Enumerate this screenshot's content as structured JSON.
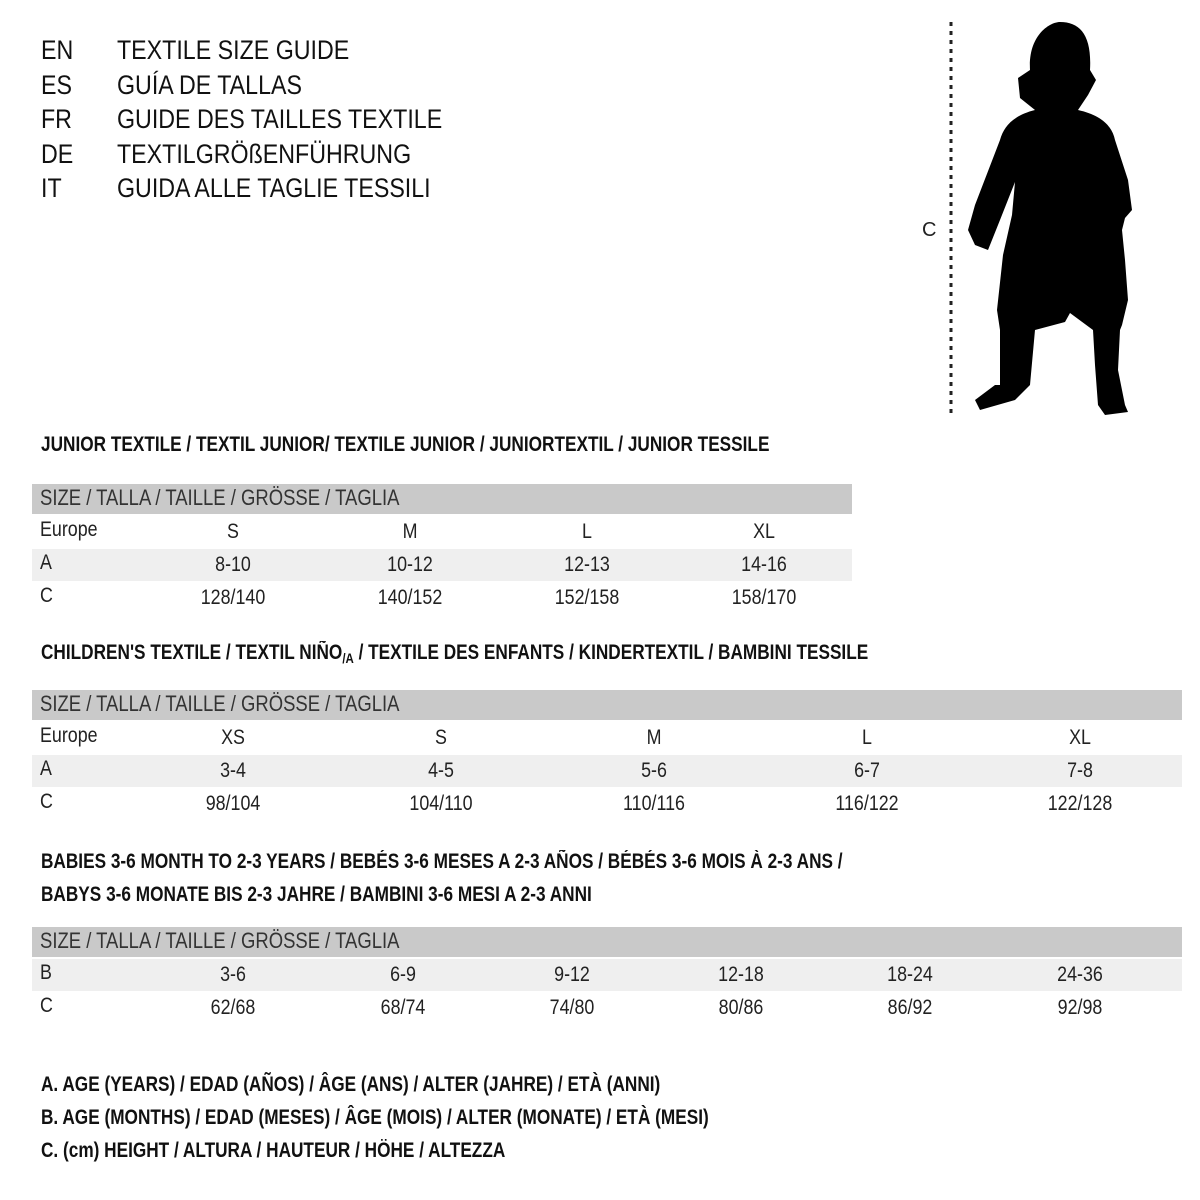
{
  "titles": [
    {
      "code": "EN",
      "text": "TEXTILE SIZE GUIDE"
    },
    {
      "code": "ES",
      "text": "GUÍA DE TALLAS"
    },
    {
      "code": "FR",
      "text": "GUIDE DES TAILLES TEXTILE"
    },
    {
      "code": "DE",
      "text": "TEXTILGRÖßENFÜHRUNG"
    },
    {
      "code": "IT",
      "text": "GUIDA ALLE TAGLIE TESSILI"
    }
  ],
  "figure": {
    "measure_label": "C",
    "icon": "child-silhouette-icon"
  },
  "junior": {
    "heading": "JUNIOR TEXTILE / TEXTIL JUNIOR/ TEXTILE JUNIOR / JUNIORTEXTIL / JUNIOR TESSILE",
    "header": "SIZE / TALLA / TAILLE / GRÖSSE / TAGLIA",
    "rows": [
      {
        "label": "Europe",
        "values": [
          "S",
          "M",
          "L",
          "XL"
        ]
      },
      {
        "label": "A",
        "values": [
          "8-10",
          "10-12",
          "12-13",
          "14-16"
        ]
      },
      {
        "label": "C",
        "values": [
          "128/140",
          "140/152",
          "152/158",
          "158/170"
        ]
      }
    ]
  },
  "children": {
    "heading_pre": "CHILDREN'S TEXTILE / TEXTIL NIÑO",
    "heading_sub": "/A",
    "heading_post": " / TEXTILE DES ENFANTS / KINDERTEXTIL / BAMBINI TESSILE",
    "header": "SIZE / TALLA / TAILLE / GRÖSSE / TAGLIA",
    "rows": [
      {
        "label": "Europe",
        "values": [
          "XS",
          "S",
          "M",
          "L",
          "XL"
        ]
      },
      {
        "label": "A",
        "values": [
          "3-4",
          "4-5",
          "5-6",
          "6-7",
          "7-8"
        ]
      },
      {
        "label": "C",
        "values": [
          "98/104",
          "104/110",
          "110/116",
          "116/122",
          "122/128"
        ]
      }
    ]
  },
  "babies": {
    "heading_line1": "BABIES 3-6 MONTH TO 2-3 YEARS / BEBÉS 3-6 MESES A 2-3 AÑOS / BÉBÉS 3-6 MOIS À 2-3 ANS /",
    "heading_line2": "BABYS 3-6 MONATE BIS 2-3 JAHRE / BAMBINI 3-6 MESI A 2-3 ANNI",
    "header": "SIZE / TALLA / TAILLE / GRÖSSE / TAGLIA",
    "rows": [
      {
        "label": "B",
        "values": [
          "3-6",
          "6-9",
          "9-12",
          "12-18",
          "18-24",
          "24-36"
        ]
      },
      {
        "label": "C",
        "values": [
          "62/68",
          "68/74",
          "74/80",
          "80/86",
          "86/92",
          "92/98"
        ]
      }
    ]
  },
  "notes": [
    "A. AGE (YEARS) / EDAD (AÑOS) / ÂGE (ANS) / ALTER (JAHRE) / ETÀ (ANNI)",
    "B. AGE (MONTHS) / EDAD (MESES) / ÂGE (MOIS) / ALTER (MONATE) / ETÀ (MESI)",
    "C. (cm) HEIGHT / ALTURA / HAUTEUR / HÖHE / ALTEZZA"
  ]
}
